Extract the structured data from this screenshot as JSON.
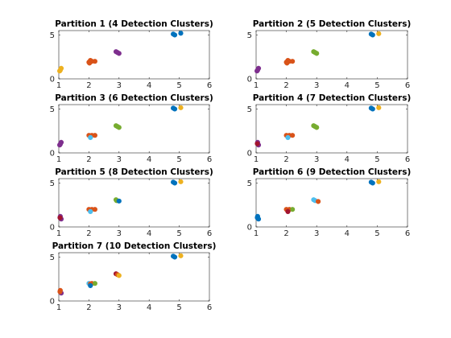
{
  "colors": {
    "blue": "#0072bd",
    "orange": "#d95319",
    "yellow": "#edb120",
    "purple": "#7e2f8e",
    "green": "#77ac30",
    "lightblue": "#4dbeee",
    "darkred": "#a2142f"
  },
  "chart_data": [
    {
      "type": "scatter",
      "title": "Partition 1 (4 Detection Clusters)",
      "xlim": [
        1,
        6
      ],
      "ylim": [
        0,
        5.5
      ],
      "xticks": [
        "1",
        "2",
        "3",
        "4",
        "5",
        "6"
      ],
      "yticks": [
        "0",
        "5"
      ],
      "points": [
        {
          "x": 1.05,
          "y": 1.0,
          "color": "yellow"
        },
        {
          "x": 1.08,
          "y": 1.2,
          "color": "yellow"
        },
        {
          "x": 1.03,
          "y": 0.9,
          "color": "yellow"
        },
        {
          "x": 2.0,
          "y": 1.9,
          "color": "orange"
        },
        {
          "x": 2.05,
          "y": 2.1,
          "color": "orange"
        },
        {
          "x": 2.1,
          "y": 2.0,
          "color": "orange"
        },
        {
          "x": 2.2,
          "y": 2.0,
          "color": "orange"
        },
        {
          "x": 2.02,
          "y": 1.8,
          "color": "orange"
        },
        {
          "x": 2.9,
          "y": 3.1,
          "color": "purple"
        },
        {
          "x": 2.95,
          "y": 3.0,
          "color": "purple"
        },
        {
          "x": 3.0,
          "y": 2.9,
          "color": "purple"
        },
        {
          "x": 4.8,
          "y": 5.1,
          "color": "blue"
        },
        {
          "x": 5.05,
          "y": 5.2,
          "color": "blue"
        },
        {
          "x": 4.85,
          "y": 5.0,
          "color": "blue"
        }
      ]
    },
    {
      "type": "scatter",
      "title": "Partition 2 (5 Detection Clusters)",
      "xlim": [
        1,
        6
      ],
      "ylim": [
        0,
        5.5
      ],
      "xticks": [
        "1",
        "2",
        "3",
        "4",
        "5",
        "6"
      ],
      "yticks": [
        "0",
        "5"
      ],
      "points": [
        {
          "x": 1.05,
          "y": 1.0,
          "color": "purple"
        },
        {
          "x": 1.08,
          "y": 1.2,
          "color": "purple"
        },
        {
          "x": 1.03,
          "y": 0.9,
          "color": "purple"
        },
        {
          "x": 2.0,
          "y": 1.9,
          "color": "orange"
        },
        {
          "x": 2.05,
          "y": 2.1,
          "color": "orange"
        },
        {
          "x": 2.1,
          "y": 2.0,
          "color": "orange"
        },
        {
          "x": 2.2,
          "y": 2.0,
          "color": "orange"
        },
        {
          "x": 2.02,
          "y": 1.8,
          "color": "orange"
        },
        {
          "x": 2.9,
          "y": 3.1,
          "color": "green"
        },
        {
          "x": 2.95,
          "y": 3.0,
          "color": "green"
        },
        {
          "x": 3.0,
          "y": 2.9,
          "color": "green"
        },
        {
          "x": 4.8,
          "y": 5.1,
          "color": "blue"
        },
        {
          "x": 4.85,
          "y": 5.0,
          "color": "blue"
        },
        {
          "x": 5.05,
          "y": 5.15,
          "color": "yellow"
        }
      ]
    },
    {
      "type": "scatter",
      "title": "Partition 3 (6 Detection Clusters)",
      "xlim": [
        1,
        6
      ],
      "ylim": [
        0,
        5.5
      ],
      "xticks": [
        "1",
        "2",
        "3",
        "4",
        "5",
        "6"
      ],
      "yticks": [
        "0",
        "5"
      ],
      "points": [
        {
          "x": 1.05,
          "y": 1.0,
          "color": "purple"
        },
        {
          "x": 1.08,
          "y": 1.2,
          "color": "purple"
        },
        {
          "x": 1.03,
          "y": 0.9,
          "color": "purple"
        },
        {
          "x": 2.0,
          "y": 2.0,
          "color": "orange"
        },
        {
          "x": 2.1,
          "y": 2.0,
          "color": "orange"
        },
        {
          "x": 2.2,
          "y": 2.0,
          "color": "orange"
        },
        {
          "x": 2.05,
          "y": 1.95,
          "color": "orange"
        },
        {
          "x": 2.05,
          "y": 1.75,
          "color": "lightblue"
        },
        {
          "x": 2.9,
          "y": 3.1,
          "color": "green"
        },
        {
          "x": 2.95,
          "y": 3.0,
          "color": "green"
        },
        {
          "x": 3.0,
          "y": 2.9,
          "color": "green"
        },
        {
          "x": 4.8,
          "y": 5.1,
          "color": "blue"
        },
        {
          "x": 4.85,
          "y": 5.0,
          "color": "blue"
        },
        {
          "x": 5.05,
          "y": 5.15,
          "color": "yellow"
        }
      ]
    },
    {
      "type": "scatter",
      "title": "Partition 4 (7 Detection Clusters)",
      "xlim": [
        1,
        6
      ],
      "ylim": [
        0,
        5.5
      ],
      "xticks": [
        "1",
        "2",
        "3",
        "4",
        "5",
        "6"
      ],
      "yticks": [
        "0",
        "5"
      ],
      "points": [
        {
          "x": 1.05,
          "y": 1.2,
          "color": "purple"
        },
        {
          "x": 1.08,
          "y": 0.9,
          "color": "purple"
        },
        {
          "x": 1.04,
          "y": 1.05,
          "color": "darkred"
        },
        {
          "x": 2.0,
          "y": 2.0,
          "color": "orange"
        },
        {
          "x": 2.1,
          "y": 2.0,
          "color": "orange"
        },
        {
          "x": 2.2,
          "y": 2.0,
          "color": "orange"
        },
        {
          "x": 2.05,
          "y": 1.95,
          "color": "orange"
        },
        {
          "x": 2.05,
          "y": 1.75,
          "color": "lightblue"
        },
        {
          "x": 2.9,
          "y": 3.1,
          "color": "green"
        },
        {
          "x": 2.95,
          "y": 3.0,
          "color": "green"
        },
        {
          "x": 3.0,
          "y": 2.9,
          "color": "green"
        },
        {
          "x": 4.8,
          "y": 5.1,
          "color": "blue"
        },
        {
          "x": 4.85,
          "y": 5.0,
          "color": "blue"
        },
        {
          "x": 5.05,
          "y": 5.15,
          "color": "yellow"
        }
      ]
    },
    {
      "type": "scatter",
      "title": "Partition 5 (8 Detection Clusters)",
      "xlim": [
        1,
        6
      ],
      "ylim": [
        0,
        5.5
      ],
      "xticks": [
        "1",
        "2",
        "3",
        "4",
        "5",
        "6"
      ],
      "yticks": [
        "0",
        "5"
      ],
      "points": [
        {
          "x": 1.05,
          "y": 1.2,
          "color": "purple"
        },
        {
          "x": 1.08,
          "y": 0.9,
          "color": "purple"
        },
        {
          "x": 1.04,
          "y": 1.05,
          "color": "darkred"
        },
        {
          "x": 2.0,
          "y": 2.0,
          "color": "orange"
        },
        {
          "x": 2.1,
          "y": 2.0,
          "color": "orange"
        },
        {
          "x": 2.2,
          "y": 2.0,
          "color": "orange"
        },
        {
          "x": 2.05,
          "y": 1.95,
          "color": "orange"
        },
        {
          "x": 2.05,
          "y": 1.75,
          "color": "lightblue"
        },
        {
          "x": 2.9,
          "y": 3.1,
          "color": "green"
        },
        {
          "x": 2.92,
          "y": 3.0,
          "color": "green"
        },
        {
          "x": 3.0,
          "y": 2.95,
          "color": "blue"
        },
        {
          "x": 4.8,
          "y": 5.1,
          "color": "blue"
        },
        {
          "x": 4.85,
          "y": 5.0,
          "color": "blue"
        },
        {
          "x": 5.05,
          "y": 5.15,
          "color": "yellow"
        }
      ]
    },
    {
      "type": "scatter",
      "title": "Partition 6 (9 Detection Clusters)",
      "xlim": [
        1,
        6
      ],
      "ylim": [
        0,
        5.5
      ],
      "xticks": [
        "1",
        "2",
        "3",
        "4",
        "5",
        "6"
      ],
      "yticks": [
        "0",
        "5"
      ],
      "points": [
        {
          "x": 1.05,
          "y": 1.2,
          "color": "blue"
        },
        {
          "x": 1.08,
          "y": 0.9,
          "color": "blue"
        },
        {
          "x": 1.04,
          "y": 1.05,
          "color": "blue"
        },
        {
          "x": 2.0,
          "y": 2.0,
          "color": "orange"
        },
        {
          "x": 2.1,
          "y": 2.0,
          "color": "orange"
        },
        {
          "x": 2.2,
          "y": 2.0,
          "color": "green"
        },
        {
          "x": 2.05,
          "y": 1.95,
          "color": "orange"
        },
        {
          "x": 2.05,
          "y": 1.75,
          "color": "darkred"
        },
        {
          "x": 2.9,
          "y": 3.1,
          "color": "lightblue"
        },
        {
          "x": 2.95,
          "y": 3.0,
          "color": "lightblue"
        },
        {
          "x": 3.05,
          "y": 2.9,
          "color": "orange"
        },
        {
          "x": 4.8,
          "y": 5.1,
          "color": "blue"
        },
        {
          "x": 4.85,
          "y": 5.0,
          "color": "blue"
        },
        {
          "x": 5.05,
          "y": 5.15,
          "color": "yellow"
        }
      ]
    },
    {
      "type": "scatter",
      "title": "Partition 7 (10 Detection Clusters)",
      "xlim": [
        1,
        6
      ],
      "ylim": [
        0,
        5.5
      ],
      "xticks": [
        "1",
        "2",
        "3",
        "4",
        "5",
        "6"
      ],
      "yticks": [
        "0",
        "5"
      ],
      "points": [
        {
          "x": 1.05,
          "y": 1.2,
          "color": "orange"
        },
        {
          "x": 1.08,
          "y": 0.9,
          "color": "purple"
        },
        {
          "x": 1.04,
          "y": 1.05,
          "color": "orange"
        },
        {
          "x": 2.0,
          "y": 2.0,
          "color": "lightblue"
        },
        {
          "x": 2.1,
          "y": 2.0,
          "color": "orange"
        },
        {
          "x": 2.2,
          "y": 2.0,
          "color": "green"
        },
        {
          "x": 2.05,
          "y": 1.95,
          "color": "orange"
        },
        {
          "x": 2.05,
          "y": 1.75,
          "color": "blue"
        },
        {
          "x": 2.9,
          "y": 3.1,
          "color": "darkred"
        },
        {
          "x": 2.95,
          "y": 3.0,
          "color": "orange"
        },
        {
          "x": 3.0,
          "y": 2.9,
          "color": "yellow"
        },
        {
          "x": 4.8,
          "y": 5.1,
          "color": "blue"
        },
        {
          "x": 4.85,
          "y": 5.0,
          "color": "blue"
        },
        {
          "x": 5.05,
          "y": 5.15,
          "color": "yellow"
        }
      ]
    }
  ]
}
